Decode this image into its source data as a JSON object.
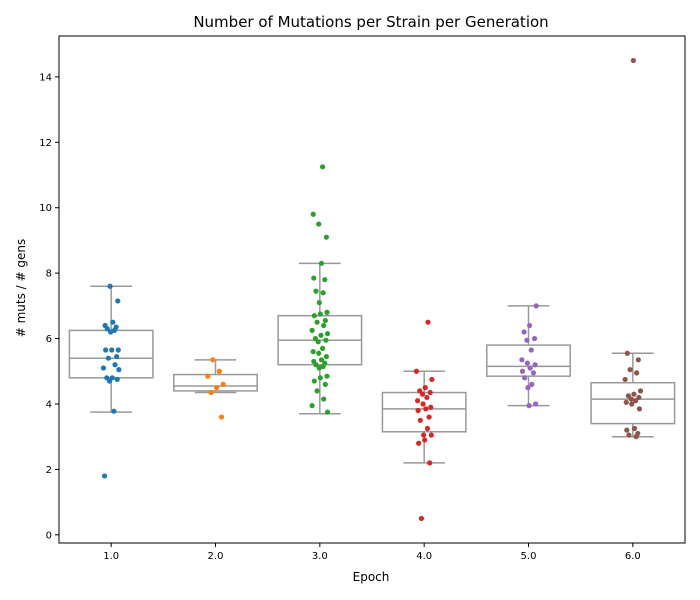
{
  "chart_data": {
    "type": "box_strip",
    "title": "Number of Mutations per Strain per Generation",
    "xlabel": "Epoch",
    "ylabel": "# muts / # gens",
    "categories": [
      "1.0",
      "2.0",
      "3.0",
      "4.0",
      "5.0",
      "6.0"
    ],
    "ylim": [
      -0.25,
      15.25
    ],
    "yticks": [
      0,
      2,
      4,
      6,
      8,
      10,
      12,
      14
    ],
    "ytick_labels": [
      "0",
      "2",
      "4",
      "6",
      "8",
      "10",
      "12",
      "14"
    ],
    "grid": false,
    "legend": "none",
    "box_color": "#999999",
    "series": [
      {
        "category": "1.0",
        "color": "#1f77b4",
        "box": {
          "whislo": 3.75,
          "q1": 4.8,
          "median": 5.4,
          "q3": 6.25,
          "whishi": 7.6
        },
        "points": [
          1.8,
          3.78,
          4.7,
          4.75,
          4.8,
          4.8,
          5.05,
          5.1,
          5.2,
          5.4,
          5.45,
          5.65,
          5.65,
          5.65,
          6.2,
          6.25,
          6.3,
          6.35,
          6.4,
          6.5,
          7.15,
          7.6
        ]
      },
      {
        "category": "2.0",
        "color": "#ff7f0e",
        "box": {
          "whislo": 4.35,
          "q1": 4.4,
          "median": 4.55,
          "q3": 4.9,
          "whishi": 5.35
        },
        "points": [
          3.6,
          4.35,
          4.5,
          4.6,
          4.85,
          5.0,
          5.35
        ]
      },
      {
        "category": "3.0",
        "color": "#2ca02c",
        "box": {
          "whislo": 3.7,
          "q1": 5.2,
          "median": 5.95,
          "q3": 6.7,
          "whishi": 8.3
        },
        "points": [
          3.75,
          3.95,
          4.15,
          4.4,
          4.6,
          4.7,
          4.8,
          4.85,
          5.1,
          5.15,
          5.2,
          5.25,
          5.3,
          5.35,
          5.45,
          5.55,
          5.6,
          5.7,
          5.9,
          5.95,
          6.0,
          6.1,
          6.15,
          6.25,
          6.4,
          6.5,
          6.55,
          6.7,
          6.75,
          6.8,
          7.1,
          7.4,
          7.45,
          7.8,
          7.85,
          8.3,
          9.1,
          9.5,
          9.8,
          11.25
        ]
      },
      {
        "category": "4.0",
        "color": "#d62728",
        "box": {
          "whislo": 2.2,
          "q1": 3.15,
          "median": 3.85,
          "q3": 4.35,
          "whishi": 5.0
        },
        "points": [
          0.5,
          2.2,
          2.8,
          2.9,
          3.05,
          3.05,
          3.25,
          3.5,
          3.6,
          3.8,
          3.85,
          3.9,
          4.0,
          4.1,
          4.2,
          4.3,
          4.35,
          4.4,
          4.5,
          4.75,
          5.0,
          6.5
        ]
      },
      {
        "category": "5.0",
        "color": "#9467bd",
        "box": {
          "whislo": 3.95,
          "q1": 4.85,
          "median": 5.15,
          "q3": 5.8,
          "whishi": 7.0
        },
        "points": [
          3.95,
          4.0,
          4.5,
          4.6,
          4.8,
          4.95,
          5.0,
          5.1,
          5.2,
          5.25,
          5.35,
          5.65,
          5.95,
          6.0,
          6.2,
          6.4,
          7.0
        ]
      },
      {
        "category": "6.0",
        "color": "#8c564b",
        "box": {
          "whislo": 3.0,
          "q1": 3.4,
          "median": 4.15,
          "q3": 4.65,
          "whishi": 5.55
        },
        "points": [
          3.0,
          3.05,
          3.1,
          3.2,
          3.25,
          3.85,
          4.0,
          4.05,
          4.1,
          4.15,
          4.2,
          4.25,
          4.3,
          4.4,
          4.75,
          4.95,
          5.05,
          5.35,
          5.55,
          14.5
        ]
      }
    ]
  }
}
